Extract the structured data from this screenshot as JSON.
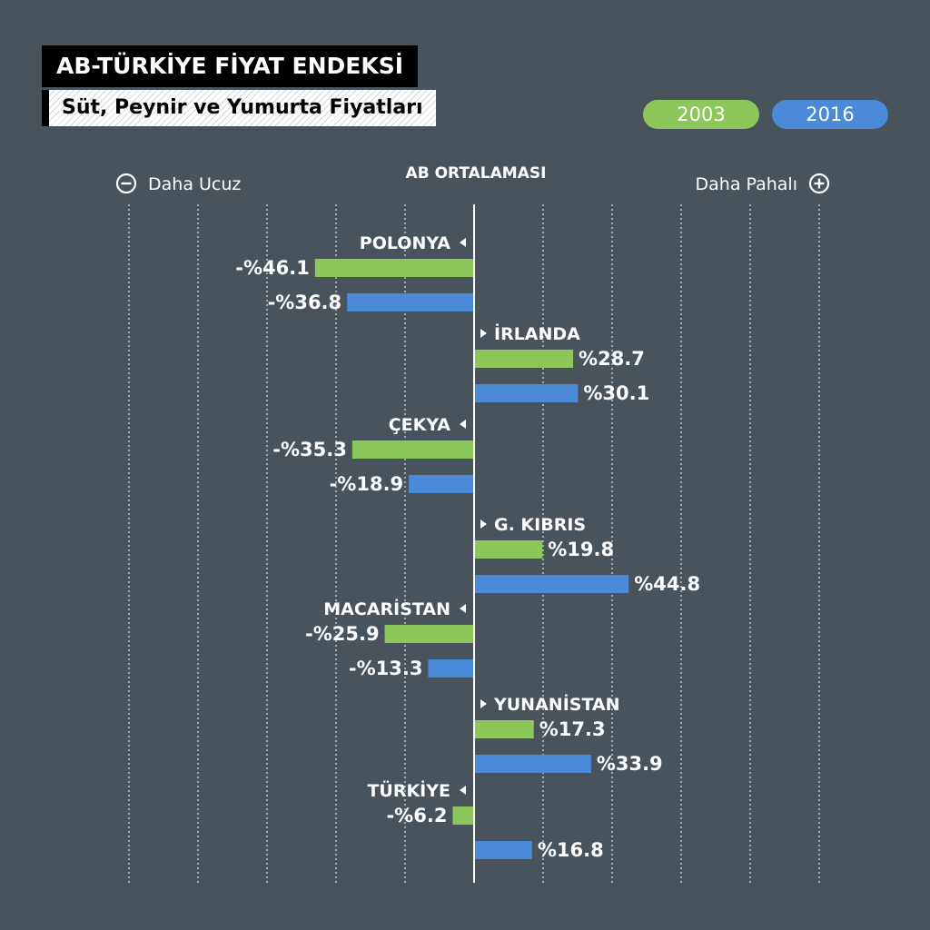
{
  "header": {
    "title": "AB-TÜRKİYE FİYAT ENDEKSİ",
    "subtitle": "Süt, Peynir ve Yumurta Fiyatları"
  },
  "legend": [
    {
      "label": "2003",
      "color": "#8dc65a"
    },
    {
      "label": "2016",
      "color": "#4a8ad8"
    }
  ],
  "scale": {
    "left_label": "Daha Ucuz",
    "right_label": "Daha Pahalı",
    "center_label": "AB ORTALAMASI",
    "minus_icon": "minus-circle-icon",
    "plus_icon": "plus-circle-icon"
  },
  "chart_data": {
    "type": "bar",
    "orientation": "horizontal",
    "title": "AB-TÜRKİYE FİYAT ENDEKSİ",
    "subtitle": "Süt, Peynir ve Yumurta Fiyatları",
    "xlim": [
      -50,
      50
    ],
    "grid": true,
    "legend_position": "top-right",
    "categories": [
      "POLONYA",
      "İRLANDA",
      "ÇEKYA",
      "G. KIBRIS",
      "MACARİSTAN",
      "YUNANİSTAN",
      "TÜRKİYE"
    ],
    "series": [
      {
        "name": "2003",
        "color": "#8dc65a",
        "values": [
          -46.1,
          28.7,
          -35.3,
          19.8,
          -25.9,
          17.3,
          -6.2
        ],
        "labels": [
          "-%46.1",
          "%28.7",
          "-%35.3",
          "%19.8",
          "-%25.9",
          "%17.3",
          "-%6.2"
        ]
      },
      {
        "name": "2016",
        "color": "#4a8ad8",
        "values": [
          -36.8,
          30.1,
          -18.9,
          44.8,
          -13.3,
          33.9,
          16.8
        ],
        "labels": [
          "-%36.8",
          "%30.1",
          "-%18.9",
          "%44.8",
          "-%13.3",
          "%33.9",
          "%16.8"
        ]
      }
    ]
  }
}
